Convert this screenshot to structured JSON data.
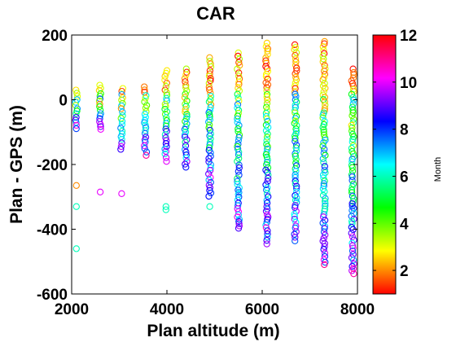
{
  "chart_data": {
    "type": "scatter",
    "title": "CAR",
    "xlabel": "Plan altitude (m)",
    "ylabel": "Plan - GPS (m)",
    "xlim": [
      2000,
      8000
    ],
    "ylim": [
      -600,
      200
    ],
    "xticks": [
      2000,
      4000,
      6000,
      8000
    ],
    "yticks": [
      200,
      0,
      -200,
      -400,
      -600
    ],
    "marker": "open-circle",
    "grid": false,
    "legend": "none",
    "colorbar": {
      "label": "Month",
      "range": [
        1,
        12
      ],
      "ticks": [
        2,
        4,
        6,
        8,
        10,
        12
      ],
      "colormap": "hsv",
      "colors": [
        "#ff0000",
        "#ffff00",
        "#00ff00",
        "#00ffff",
        "#0000ff",
        "#ff00ff",
        "#ff0000"
      ]
    },
    "columns": [
      {
        "x": 2100,
        "ymin": -90,
        "ymax": 30,
        "outliers": [
          [
            -265,
            2
          ],
          [
            -330,
            6
          ],
          [
            -460,
            6
          ]
        ]
      },
      {
        "x": 2600,
        "ymin": -95,
        "ymax": 45,
        "outliers": [
          [
            -285,
            10
          ]
        ]
      },
      {
        "x": 3050,
        "ymin": -160,
        "ymax": 35,
        "outliers": [
          [
            -290,
            10
          ]
        ]
      },
      {
        "x": 3550,
        "ymin": -175,
        "ymax": 40,
        "outliers": []
      },
      {
        "x": 3980,
        "ymin": -200,
        "ymax": 90,
        "outliers": [
          [
            -330,
            6
          ],
          [
            -340,
            6
          ]
        ]
      },
      {
        "x": 4400,
        "ymin": -210,
        "ymax": 95,
        "outliers": []
      },
      {
        "x": 4900,
        "ymin": -300,
        "ymax": 130,
        "outliers": [
          [
            -330,
            6
          ]
        ]
      },
      {
        "x": 5500,
        "ymin": -400,
        "ymax": 145,
        "outliers": []
      },
      {
        "x": 6100,
        "ymin": -450,
        "ymax": 175,
        "outliers": []
      },
      {
        "x": 6700,
        "ymin": -440,
        "ymax": 170,
        "outliers": []
      },
      {
        "x": 7300,
        "ymin": -510,
        "ymax": 180,
        "outliers": []
      },
      {
        "x": 7900,
        "ymin": -540,
        "ymax": 95,
        "outliers": []
      }
    ]
  }
}
